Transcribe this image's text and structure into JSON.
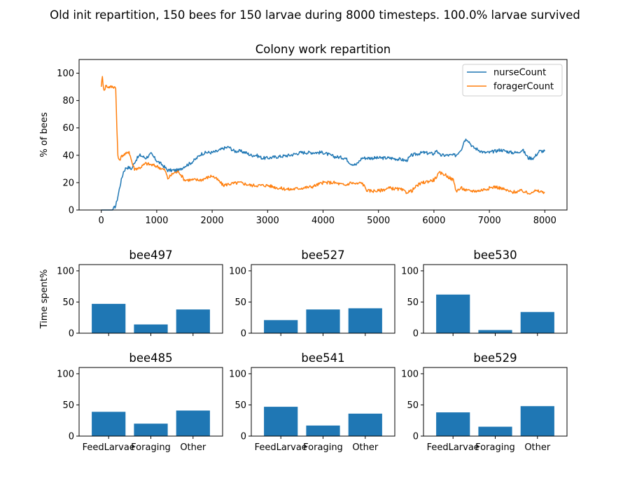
{
  "figure": {
    "suptitle": "Old init repartition, 150 bees for 150 larvae during 8000 timesteps. 100.0% larvae survived",
    "colors": {
      "nurse": "#1f77b4",
      "forager": "#ff7f0e",
      "bar": "#1f77b4"
    }
  },
  "chart_data": [
    {
      "type": "line",
      "title": "Colony work repartition",
      "xlabel": "",
      "ylabel": "% of bees",
      "xlim": [
        -400,
        8400
      ],
      "ylim": [
        0,
        110
      ],
      "xticks": [
        0,
        1000,
        2000,
        3000,
        4000,
        5000,
        6000,
        7000,
        8000
      ],
      "yticks": [
        0,
        20,
        40,
        60,
        80,
        100
      ],
      "legend": "top-right",
      "series": [
        {
          "name": "nurseCount",
          "x": [
            0,
            200,
            260,
            300,
            350,
            400,
            450,
            500,
            550,
            600,
            650,
            700,
            800,
            900,
            1000,
            1100,
            1200,
            1300,
            1400,
            1500,
            1600,
            1700,
            1800,
            1900,
            2000,
            2100,
            2200,
            2300,
            2400,
            2500,
            2600,
            2700,
            2800,
            2900,
            3000,
            3200,
            3400,
            3600,
            3800,
            4000,
            4200,
            4400,
            4500,
            4600,
            4700,
            4800,
            5000,
            5200,
            5400,
            5500,
            5600,
            5800,
            6000,
            6050,
            6100,
            6200,
            6300,
            6400,
            6500,
            6550,
            6600,
            6700,
            6800,
            6900,
            7000,
            7200,
            7400,
            7500,
            7600,
            7700,
            7800,
            7900,
            8000
          ],
          "values": [
            0,
            0,
            3,
            10,
            20,
            28,
            31,
            31,
            30,
            35,
            38,
            40,
            38,
            41,
            36,
            33,
            29,
            29,
            29,
            32,
            34,
            37,
            41,
            42,
            42,
            43,
            45,
            46,
            43,
            43,
            42,
            40,
            40,
            38,
            38,
            39,
            40,
            42,
            42,
            42,
            39,
            38,
            34,
            33,
            38,
            38,
            38,
            38,
            37,
            36,
            40,
            42,
            41,
            44,
            40,
            40,
            40,
            40,
            45,
            51,
            52,
            46,
            44,
            42,
            42,
            44,
            42,
            42,
            44,
            38,
            38,
            43,
            43
          ]
        },
        {
          "name": "foragerCount",
          "x": [
            0,
            20,
            40,
            60,
            80,
            120,
            200,
            260,
            280,
            300,
            320,
            380,
            450,
            500,
            560,
            600,
            700,
            800,
            900,
            1000,
            1100,
            1150,
            1200,
            1300,
            1400,
            1500,
            1600,
            1800,
            2000,
            2100,
            2200,
            2300,
            2500,
            2700,
            3000,
            3200,
            3400,
            3600,
            3800,
            4000,
            4100,
            4200,
            4400,
            4500,
            4600,
            4700,
            4800,
            5000,
            5200,
            5400,
            5500,
            5600,
            5700,
            5800,
            6000,
            6100,
            6200,
            6300,
            6350,
            6400,
            6500,
            6600,
            6800,
            7000,
            7100,
            7200,
            7400,
            7600,
            7700,
            7800,
            8000
          ],
          "values": [
            91,
            97,
            90,
            87,
            91,
            90,
            90,
            90,
            60,
            40,
            36,
            40,
            41,
            43,
            34,
            30,
            31,
            34,
            33,
            32,
            30,
            29,
            23,
            27,
            28,
            22,
            22,
            22,
            25,
            22,
            18,
            19,
            20,
            18,
            18,
            16,
            15,
            16,
            17,
            20,
            20,
            20,
            18,
            20,
            19,
            20,
            14,
            14,
            16,
            15,
            13,
            14,
            18,
            20,
            22,
            27,
            26,
            23,
            22,
            14,
            16,
            14,
            14,
            16,
            17,
            16,
            13,
            14,
            12,
            14,
            13
          ]
        }
      ]
    },
    {
      "type": "bar",
      "title": "bee497",
      "ylabel": "Time spent%",
      "ylim": [
        0,
        110
      ],
      "yticks": [
        0,
        50,
        100
      ],
      "categories": [
        "FeedLarvae",
        "Foraging",
        "Other"
      ],
      "values": [
        47,
        14,
        38
      ],
      "show_xticklabels": false
    },
    {
      "type": "bar",
      "title": "bee527",
      "ylabel": "",
      "ylim": [
        0,
        110
      ],
      "yticks": [
        0,
        50,
        100
      ],
      "categories": [
        "FeedLarvae",
        "Foraging",
        "Other"
      ],
      "values": [
        21,
        38,
        40
      ],
      "show_xticklabels": false
    },
    {
      "type": "bar",
      "title": "bee530",
      "ylabel": "",
      "ylim": [
        0,
        110
      ],
      "yticks": [
        0,
        50,
        100
      ],
      "categories": [
        "FeedLarvae",
        "Foraging",
        "Other"
      ],
      "values": [
        62,
        5,
        34
      ],
      "show_xticklabels": false
    },
    {
      "type": "bar",
      "title": "bee485",
      "ylabel": "",
      "ylim": [
        0,
        110
      ],
      "yticks": [
        0,
        50,
        100
      ],
      "categories": [
        "FeedLarvae",
        "Foraging",
        "Other"
      ],
      "values": [
        39,
        20,
        41
      ],
      "show_xticklabels": true
    },
    {
      "type": "bar",
      "title": "bee541",
      "ylabel": "",
      "ylim": [
        0,
        110
      ],
      "yticks": [
        0,
        50,
        100
      ],
      "categories": [
        "FeedLarvae",
        "Foraging",
        "Other"
      ],
      "values": [
        47,
        17,
        36
      ],
      "show_xticklabels": true
    },
    {
      "type": "bar",
      "title": "bee529",
      "ylabel": "",
      "ylim": [
        0,
        110
      ],
      "yticks": [
        0,
        50,
        100
      ],
      "categories": [
        "FeedLarvae",
        "Foraging",
        "Other"
      ],
      "values": [
        38,
        15,
        48
      ],
      "show_xticklabels": true
    }
  ]
}
